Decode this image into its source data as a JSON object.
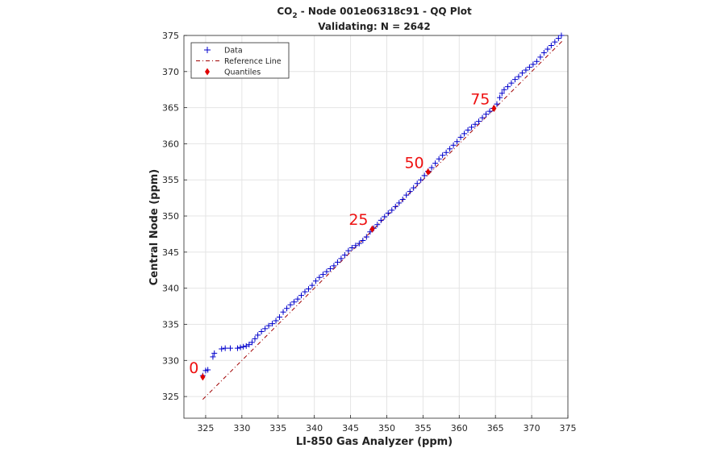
{
  "chart_data": {
    "type": "scatter",
    "title_prefix": "CO",
    "title_subscript": "2",
    "title_suffix": " - Node 001e06318c91 - QQ Plot",
    "subtitle": "Validating: N = 2642",
    "xlabel": "LI-850 Gas Analyzer (ppm)",
    "ylabel": "Central Node (ppm)",
    "xlim": [
      322,
      375
    ],
    "ylim": [
      322,
      375
    ],
    "x_ticks": [
      325,
      330,
      335,
      340,
      345,
      350,
      355,
      360,
      365,
      370,
      375
    ],
    "y_ticks": [
      325,
      330,
      335,
      340,
      345,
      350,
      355,
      360,
      365,
      370,
      375
    ],
    "grid": true,
    "legend_position": "top-left",
    "legend": [
      {
        "label": "Data",
        "marker": "plus",
        "color": "#0000cc"
      },
      {
        "label": "Reference Line",
        "marker": "dash-dot",
        "color": "#a00000"
      },
      {
        "label": "Quantiles",
        "marker": "diamond",
        "color": "#e00000"
      }
    ],
    "series": [
      {
        "name": "Data",
        "marker": "plus",
        "color": "#0000cc",
        "points": [
          [
            324.6,
            327.9
          ],
          [
            325.0,
            328.6
          ],
          [
            325.3,
            328.7
          ],
          [
            326.0,
            330.5
          ],
          [
            326.2,
            331.0
          ],
          [
            327.2,
            331.6
          ],
          [
            327.7,
            331.7
          ],
          [
            328.4,
            331.7
          ],
          [
            329.4,
            331.7
          ],
          [
            329.8,
            331.8
          ],
          [
            330.2,
            331.9
          ],
          [
            330.6,
            332.0
          ],
          [
            331.0,
            332.2
          ],
          [
            331.4,
            332.5
          ],
          [
            331.8,
            333.0
          ],
          [
            332.2,
            333.5
          ],
          [
            332.7,
            334.0
          ],
          [
            333.2,
            334.4
          ],
          [
            333.7,
            334.8
          ],
          [
            334.2,
            335.1
          ],
          [
            334.7,
            335.5
          ],
          [
            335.2,
            336.0
          ],
          [
            335.7,
            336.7
          ],
          [
            336.2,
            337.2
          ],
          [
            336.7,
            337.7
          ],
          [
            337.2,
            338.1
          ],
          [
            337.7,
            338.5
          ],
          [
            338.2,
            339.0
          ],
          [
            338.7,
            339.5
          ],
          [
            339.2,
            339.9
          ],
          [
            339.7,
            340.4
          ],
          [
            340.2,
            341.0
          ],
          [
            340.7,
            341.5
          ],
          [
            341.2,
            341.9
          ],
          [
            341.7,
            342.3
          ],
          [
            342.2,
            342.7
          ],
          [
            342.7,
            343.1
          ],
          [
            343.2,
            343.6
          ],
          [
            343.7,
            344.1
          ],
          [
            344.2,
            344.6
          ],
          [
            344.7,
            345.2
          ],
          [
            345.2,
            345.6
          ],
          [
            345.7,
            345.9
          ],
          [
            346.2,
            346.2
          ],
          [
            346.7,
            346.6
          ],
          [
            347.2,
            347.1
          ],
          [
            347.7,
            347.8
          ],
          [
            348.2,
            348.3
          ],
          [
            348.7,
            348.8
          ],
          [
            349.2,
            349.4
          ],
          [
            349.7,
            349.9
          ],
          [
            350.2,
            350.4
          ],
          [
            350.7,
            350.8
          ],
          [
            351.2,
            351.3
          ],
          [
            351.7,
            351.8
          ],
          [
            352.2,
            352.3
          ],
          [
            352.7,
            352.9
          ],
          [
            353.2,
            353.4
          ],
          [
            353.7,
            353.9
          ],
          [
            354.2,
            354.5
          ],
          [
            354.7,
            355.0
          ],
          [
            355.2,
            355.6
          ],
          [
            355.7,
            356.2
          ],
          [
            356.2,
            356.7
          ],
          [
            356.7,
            357.3
          ],
          [
            357.2,
            357.9
          ],
          [
            357.7,
            358.4
          ],
          [
            358.2,
            358.8
          ],
          [
            358.7,
            359.3
          ],
          [
            359.2,
            359.8
          ],
          [
            359.7,
            360.3
          ],
          [
            360.2,
            360.9
          ],
          [
            360.7,
            361.4
          ],
          [
            361.2,
            361.9
          ],
          [
            361.7,
            362.3
          ],
          [
            362.2,
            362.7
          ],
          [
            362.7,
            363.1
          ],
          [
            363.2,
            363.6
          ],
          [
            363.7,
            364.1
          ],
          [
            364.2,
            364.5
          ],
          [
            364.7,
            364.9
          ],
          [
            365.2,
            365.5
          ],
          [
            365.6,
            366.4
          ],
          [
            365.9,
            367.0
          ],
          [
            366.2,
            367.5
          ],
          [
            366.7,
            367.9
          ],
          [
            367.2,
            368.4
          ],
          [
            367.7,
            368.9
          ],
          [
            368.2,
            369.3
          ],
          [
            368.7,
            369.8
          ],
          [
            369.2,
            370.2
          ],
          [
            369.7,
            370.6
          ],
          [
            370.2,
            371.0
          ],
          [
            370.7,
            371.4
          ],
          [
            371.2,
            372.0
          ],
          [
            371.7,
            372.6
          ],
          [
            372.2,
            373.1
          ],
          [
            372.7,
            373.6
          ],
          [
            373.2,
            374.1
          ],
          [
            373.7,
            374.6
          ],
          [
            374.1,
            375.0
          ]
        ]
      },
      {
        "name": "Reference Line",
        "marker": "dash-dot",
        "color": "#a00000",
        "points": [
          [
            324.6,
            324.6
          ],
          [
            374.2,
            374.2
          ]
        ]
      },
      {
        "name": "Quantiles",
        "marker": "diamond",
        "color": "#e00000",
        "points": [
          [
            324.6,
            327.7
          ],
          [
            348.0,
            348.2
          ],
          [
            355.7,
            356.1
          ],
          [
            364.8,
            364.9
          ]
        ]
      }
    ],
    "annotations": [
      {
        "text": "0",
        "x": 324.6,
        "y": 327.7
      },
      {
        "text": "25",
        "x": 348.0,
        "y": 348.2
      },
      {
        "text": "50",
        "x": 355.7,
        "y": 356.1
      },
      {
        "text": "75",
        "x": 364.8,
        "y": 364.9
      }
    ]
  }
}
